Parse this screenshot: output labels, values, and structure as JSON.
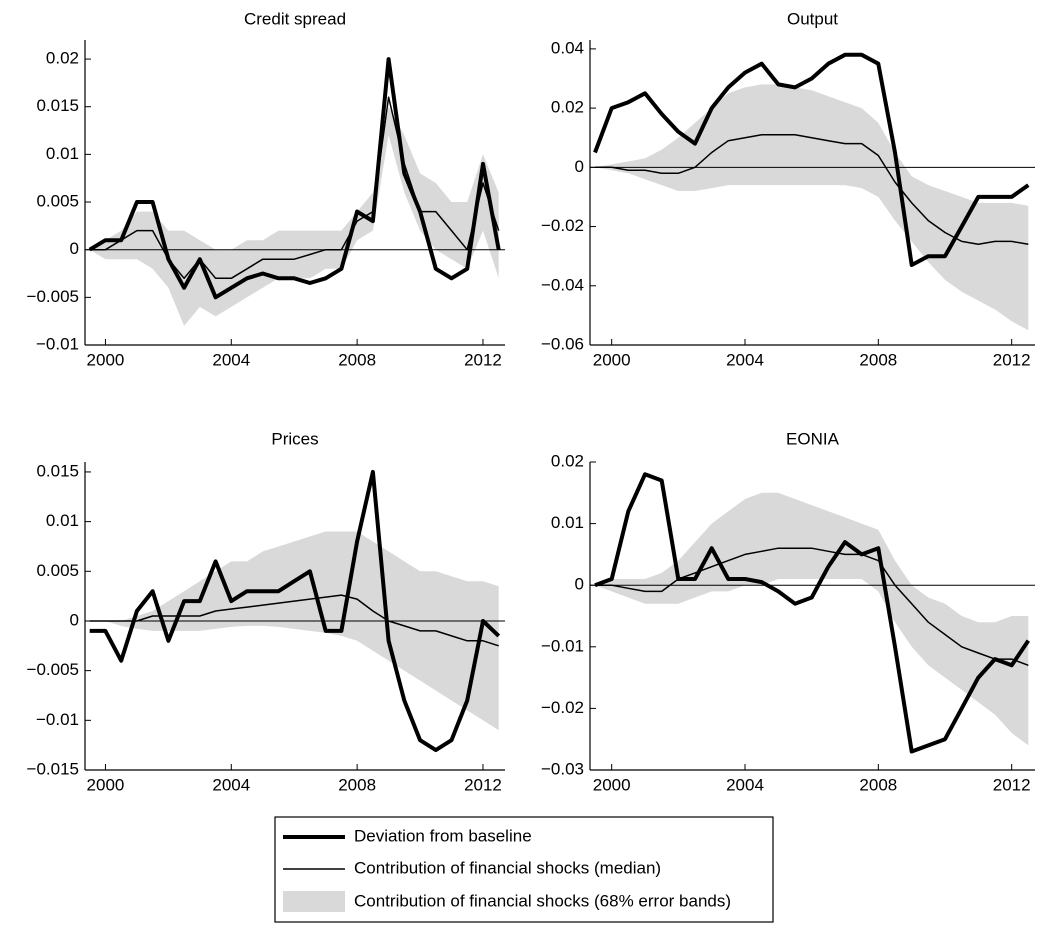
{
  "chart_data": [
    {
      "type": "line",
      "title": "Credit spread",
      "x": [
        1999.5,
        2000,
        2000.5,
        2001,
        2001.5,
        2002,
        2002.5,
        2003,
        2003.5,
        2004,
        2004.5,
        2005,
        2005.5,
        2006,
        2006.5,
        2007,
        2007.5,
        2008,
        2008.5,
        2009,
        2009.5,
        2010,
        2010.5,
        2011,
        2011.5,
        2012,
        2012.5
      ],
      "xlim": [
        1999.35,
        2012.7
      ],
      "xticks": [
        2000,
        2004,
        2008,
        2012
      ],
      "ylim": [
        -0.01,
        0.022
      ],
      "yticks": [
        {
          "value": -0.01,
          "label": "−0.01"
        },
        {
          "value": -0.005,
          "label": "−0.005"
        },
        0,
        0.005,
        0.01,
        0.015,
        0.02
      ],
      "series": [
        {
          "name": "Deviation from baseline",
          "color": "#000000",
          "values": [
            0,
            0.001,
            0.001,
            0.005,
            0.005,
            -0.001,
            -0.004,
            -0.001,
            -0.005,
            -0.004,
            -0.003,
            -0.0025,
            -0.003,
            -0.003,
            -0.0035,
            -0.003,
            -0.002,
            0.004,
            0.003,
            0.02,
            0.008,
            0.004,
            -0.002,
            -0.003,
            -0.002,
            0.009,
            0
          ]
        },
        {
          "name": "Contribution of financial shocks (median)",
          "color": "#000000",
          "values": [
            0,
            0,
            0.001,
            0.002,
            0.002,
            -0.001,
            -0.003,
            -0.001,
            -0.003,
            -0.003,
            -0.002,
            -0.001,
            -0.001,
            -0.001,
            -0.0005,
            0,
            0,
            0.003,
            0.004,
            0.016,
            0.009,
            0.004,
            0.004,
            0.002,
            0,
            0.007,
            0.002
          ]
        },
        {
          "name": "Contribution of financial shocks (68% error bands)",
          "color": "#d9d9d9",
          "upper": [
            0,
            0.001,
            0.002,
            0.004,
            0.004,
            0.002,
            0.002,
            0.001,
            0,
            0,
            0.001,
            0.001,
            0.002,
            0.002,
            0.002,
            0.002,
            0.002,
            0.004,
            0.006,
            0.015,
            0.012,
            0.008,
            0.007,
            0.005,
            0.005,
            0.01,
            0.006
          ],
          "lower": [
            0,
            -0.001,
            -0.001,
            -0.001,
            -0.002,
            -0.004,
            -0.008,
            -0.006,
            -0.007,
            -0.006,
            -0.005,
            -0.004,
            -0.003,
            -0.003,
            -0.003,
            -0.002,
            -0.002,
            0.001,
            0.002,
            0.012,
            0.006,
            0.002,
            0,
            -0.001,
            -0.002,
            0.002,
            -0.003
          ]
        }
      ]
    },
    {
      "type": "line",
      "title": "Output",
      "x": [
        1999.5,
        2000,
        2000.5,
        2001,
        2001.5,
        2002,
        2002.5,
        2003,
        2003.5,
        2004,
        2004.5,
        2005,
        2005.5,
        2006,
        2006.5,
        2007,
        2007.5,
        2008,
        2008.5,
        2009,
        2009.5,
        2010,
        2010.5,
        2011,
        2011.5,
        2012,
        2012.5
      ],
      "xlim": [
        1999.35,
        2012.7
      ],
      "xticks": [
        2000,
        2004,
        2008,
        2012
      ],
      "ylim": [
        -0.06,
        0.043
      ],
      "yticks": [
        {
          "value": -0.06,
          "label": "−0.06"
        },
        {
          "value": -0.04,
          "label": "−0.04"
        },
        {
          "value": -0.02,
          "label": "−0.02"
        },
        0,
        0.02,
        0.04
      ],
      "series": [
        {
          "color": "#000000",
          "values": [
            0.005,
            0.02,
            0.022,
            0.025,
            0.018,
            0.012,
            0.008,
            0.02,
            0.027,
            0.032,
            0.035,
            0.028,
            0.027,
            0.03,
            0.035,
            0.038,
            0.038,
            0.035,
            0.005,
            -0.033,
            -0.03,
            -0.03,
            -0.02,
            -0.01,
            -0.01,
            -0.01,
            -0.006
          ]
        },
        {
          "color": "#000000",
          "values": [
            0,
            0,
            -0.001,
            -0.001,
            -0.002,
            -0.002,
            0,
            0.005,
            0.009,
            0.01,
            0.011,
            0.011,
            0.011,
            0.01,
            0.009,
            0.008,
            0.008,
            0.004,
            -0.005,
            -0.012,
            -0.018,
            -0.022,
            -0.025,
            -0.026,
            -0.025,
            -0.025,
            -0.026
          ]
        },
        {
          "color": "#d9d9d9",
          "upper": [
            0,
            0.001,
            0.002,
            0.003,
            0.006,
            0.01,
            0.015,
            0.02,
            0.025,
            0.027,
            0.028,
            0.028,
            0.027,
            0.026,
            0.024,
            0.022,
            0.02,
            0.015,
            0.005,
            -0.003,
            -0.006,
            -0.008,
            -0.01,
            -0.012,
            -0.012,
            -0.012,
            -0.013
          ],
          "lower": [
            0,
            -0.001,
            -0.002,
            -0.004,
            -0.006,
            -0.008,
            -0.008,
            -0.007,
            -0.006,
            -0.006,
            -0.006,
            -0.006,
            -0.006,
            -0.006,
            -0.006,
            -0.006,
            -0.007,
            -0.01,
            -0.018,
            -0.025,
            -0.032,
            -0.038,
            -0.042,
            -0.045,
            -0.048,
            -0.052,
            -0.055
          ]
        }
      ]
    },
    {
      "type": "line",
      "title": "Prices",
      "x": [
        1999.5,
        2000,
        2000.5,
        2001,
        2001.5,
        2002,
        2002.5,
        2003,
        2003.5,
        2004,
        2004.5,
        2005,
        2005.5,
        2006,
        2006.5,
        2007,
        2007.5,
        2008,
        2008.5,
        2009,
        2009.5,
        2010,
        2010.5,
        2011,
        2011.5,
        2012,
        2012.5
      ],
      "xlim": [
        1999.35,
        2012.7
      ],
      "xticks": [
        2000,
        2004,
        2008,
        2012
      ],
      "ylim": [
        -0.015,
        0.016
      ],
      "yticks": [
        {
          "value": -0.015,
          "label": "−0.015"
        },
        {
          "value": -0.01,
          "label": "−0.01"
        },
        {
          "value": -0.005,
          "label": "−0.005"
        },
        0,
        0.005,
        0.01,
        0.015
      ],
      "series": [
        {
          "color": "#000000",
          "values": [
            -0.001,
            -0.001,
            -0.004,
            0.001,
            0.003,
            -0.002,
            0.002,
            0.002,
            0.006,
            0.002,
            0.003,
            0.003,
            0.003,
            0.004,
            0.005,
            -0.001,
            -0.001,
            0.008,
            0.015,
            -0.002,
            -0.008,
            -0.012,
            -0.013,
            -0.012,
            -0.008,
            0,
            -0.0015
          ]
        },
        {
          "color": "#000000",
          "values": [
            0,
            0,
            0,
            0,
            0.0005,
            0.0005,
            0.0005,
            0.0005,
            0.001,
            0.0012,
            0.0014,
            0.0016,
            0.0018,
            0.002,
            0.0022,
            0.0024,
            0.0026,
            0.0022,
            0.001,
            0,
            -0.0005,
            -0.001,
            -0.001,
            -0.0015,
            -0.002,
            -0.002,
            -0.0025
          ]
        },
        {
          "color": "#d9d9d9",
          "upper": [
            0,
            0,
            0,
            0.0005,
            0.001,
            0.002,
            0.003,
            0.004,
            0.005,
            0.006,
            0.006,
            0.007,
            0.0075,
            0.008,
            0.0085,
            0.009,
            0.009,
            0.009,
            0.008,
            0.007,
            0.006,
            0.005,
            0.005,
            0.0045,
            0.004,
            0.004,
            0.0035
          ],
          "lower": [
            0,
            0,
            -0.0005,
            -0.0008,
            -0.001,
            -0.001,
            -0.001,
            -0.001,
            -0.0008,
            -0.0006,
            -0.0005,
            -0.0005,
            -0.0006,
            -0.0008,
            -0.001,
            -0.0012,
            -0.0015,
            -0.002,
            -0.003,
            -0.004,
            -0.005,
            -0.006,
            -0.007,
            -0.008,
            -0.009,
            -0.01,
            -0.011
          ]
        }
      ]
    },
    {
      "type": "line",
      "title": "EONIA",
      "x": [
        1999.5,
        2000,
        2000.5,
        2001,
        2001.5,
        2002,
        2002.5,
        2003,
        2003.5,
        2004,
        2004.5,
        2005,
        2005.5,
        2006,
        2006.5,
        2007,
        2007.5,
        2008,
        2008.5,
        2009,
        2009.5,
        2010,
        2010.5,
        2011,
        2011.5,
        2012,
        2012.5
      ],
      "xlim": [
        1999.35,
        2012.7
      ],
      "xticks": [
        2000,
        2004,
        2008,
        2012
      ],
      "ylim": [
        -0.03,
        0.02
      ],
      "yticks": [
        {
          "value": -0.03,
          "label": "−0.03"
        },
        {
          "value": -0.02,
          "label": "−0.02"
        },
        {
          "value": -0.01,
          "label": "−0.01"
        },
        0,
        0.01,
        0.02
      ],
      "series": [
        {
          "color": "#000000",
          "values": [
            0,
            0.001,
            0.012,
            0.018,
            0.017,
            0.001,
            0.001,
            0.006,
            0.001,
            0.001,
            0.0005,
            -0.001,
            -0.003,
            -0.002,
            0.003,
            0.007,
            0.005,
            0.006,
            -0.01,
            -0.027,
            -0.026,
            -0.025,
            -0.02,
            -0.015,
            -0.012,
            -0.013,
            -0.009
          ]
        },
        {
          "color": "#000000",
          "values": [
            0,
            0,
            -0.0005,
            -0.001,
            -0.001,
            0.001,
            0.002,
            0.003,
            0.004,
            0.005,
            0.0055,
            0.006,
            0.006,
            0.006,
            0.0055,
            0.005,
            0.005,
            0.004,
            0,
            -0.003,
            -0.006,
            -0.008,
            -0.01,
            -0.011,
            -0.012,
            -0.012,
            -0.013
          ]
        },
        {
          "color": "#d9d9d9",
          "upper": [
            0,
            0.001,
            0.001,
            0.001,
            0.002,
            0.004,
            0.007,
            0.01,
            0.012,
            0.014,
            0.015,
            0.015,
            0.014,
            0.013,
            0.012,
            0.011,
            0.01,
            0.009,
            0.004,
            0,
            -0.002,
            -0.003,
            -0.005,
            -0.006,
            -0.006,
            -0.005,
            -0.005
          ],
          "lower": [
            0,
            -0.001,
            -0.002,
            -0.003,
            -0.003,
            -0.003,
            -0.002,
            -0.001,
            -0.001,
            0,
            0,
            0.001,
            0.001,
            0.001,
            0.001,
            0.001,
            0.001,
            -0.001,
            -0.006,
            -0.01,
            -0.013,
            -0.015,
            -0.017,
            -0.019,
            -0.021,
            -0.024,
            -0.026
          ]
        }
      ]
    }
  ]
}
